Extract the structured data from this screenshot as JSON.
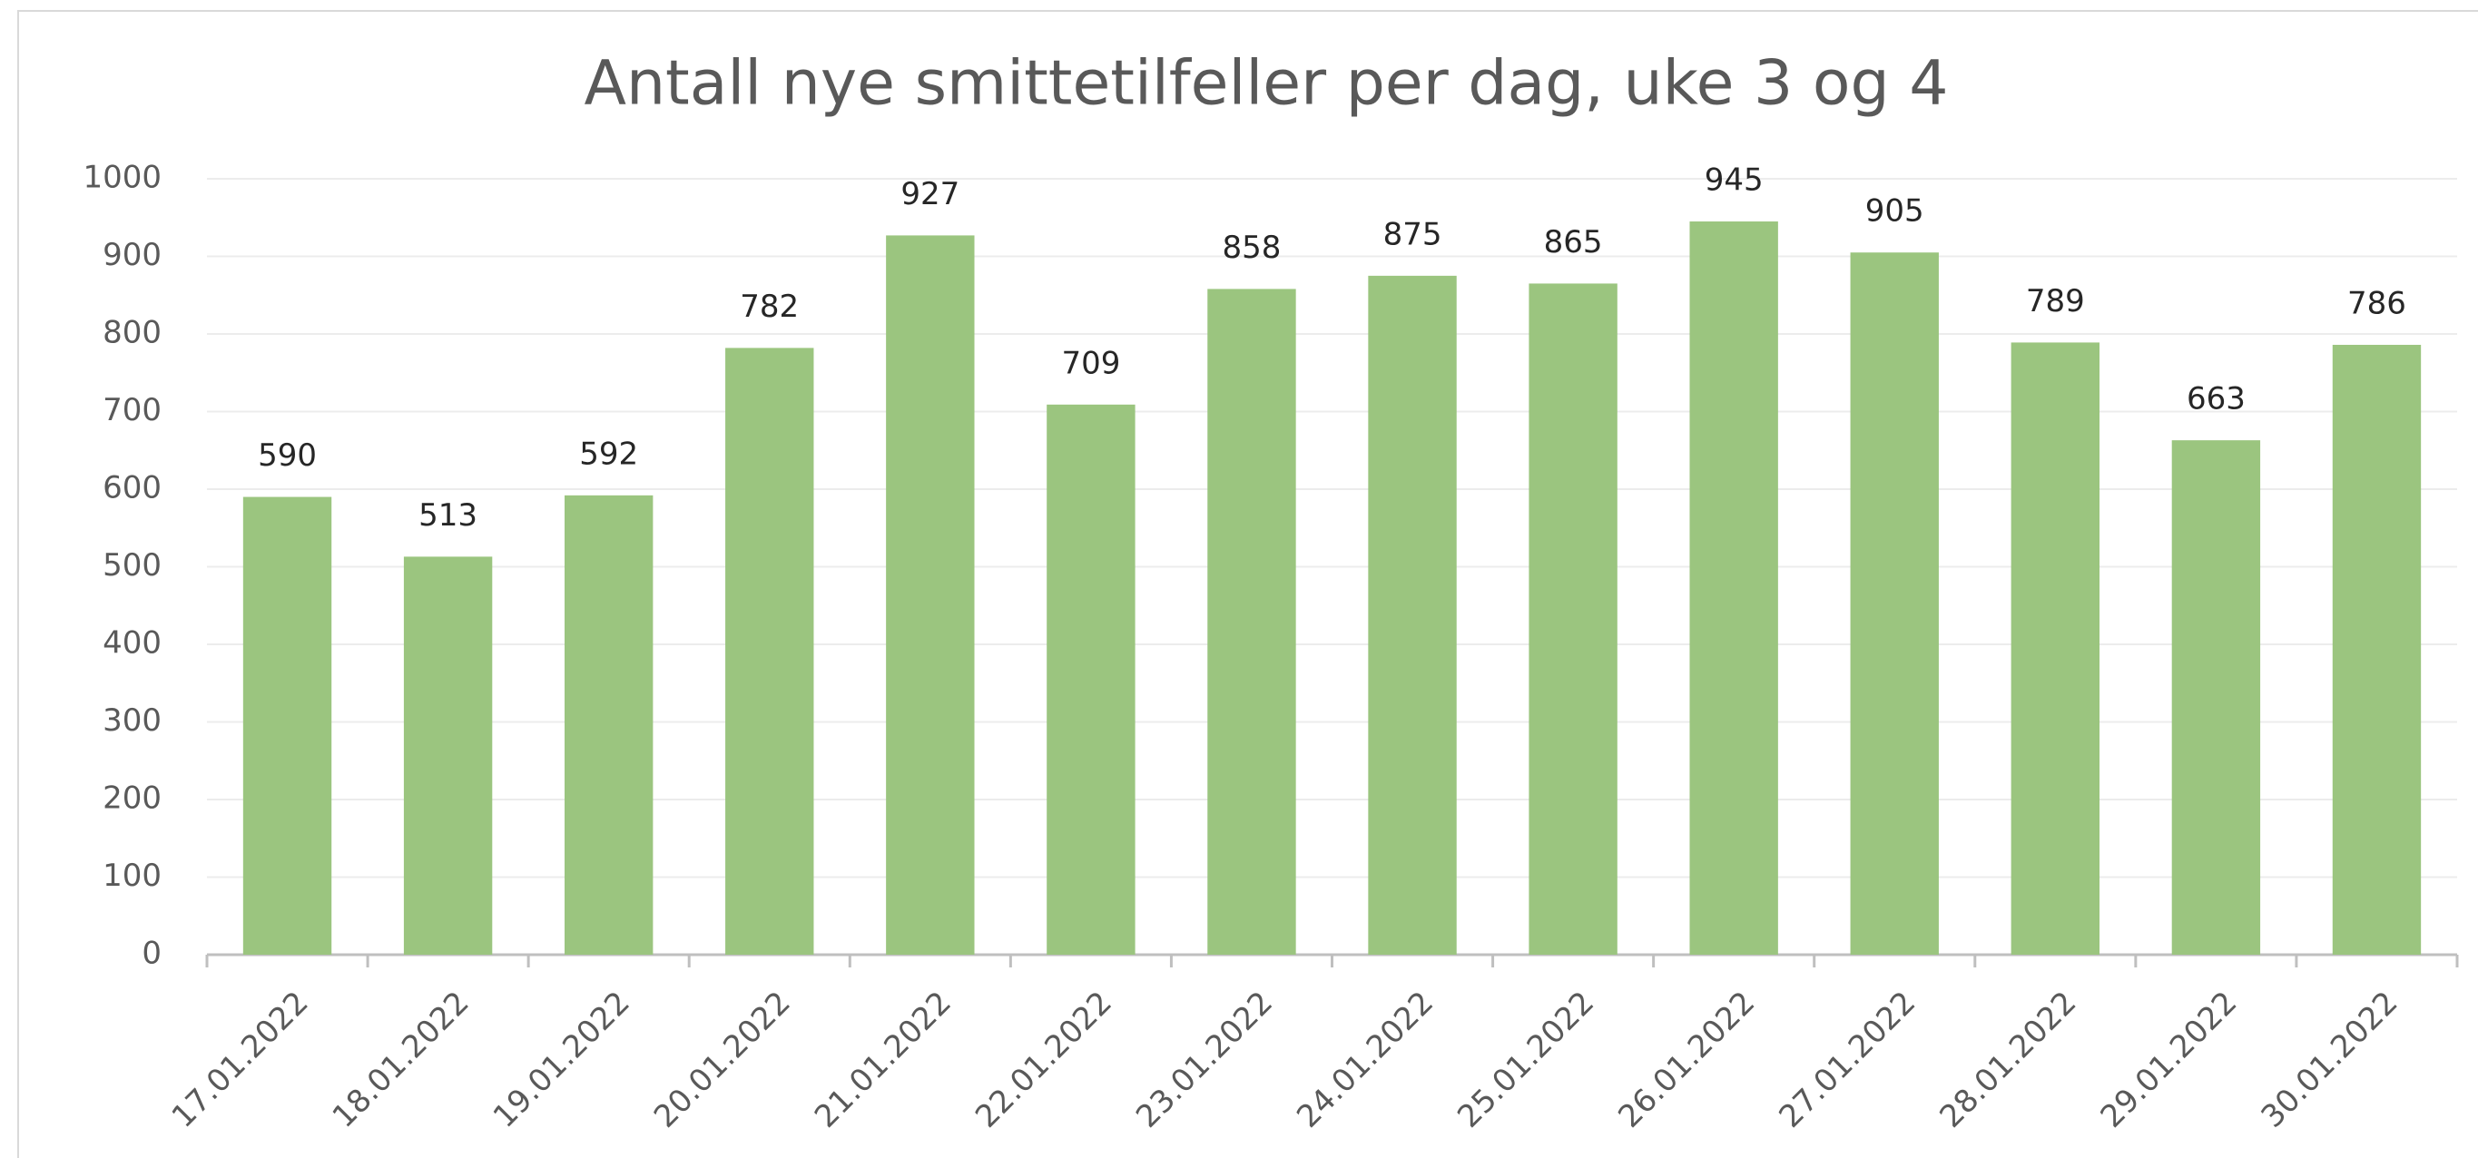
{
  "chart_data": {
    "type": "bar",
    "title": "Antall nye smittetilfeller per dag, uke 3 og 4",
    "categories": [
      "17.01.2022",
      "18.01.2022",
      "19.01.2022",
      "20.01.2022",
      "21.01.2022",
      "22.01.2022",
      "23.01.2022",
      "24.01.2022",
      "25.01.2022",
      "26.01.2022",
      "27.01.2022",
      "28.01.2022",
      "29.01.2022",
      "30.01.2022"
    ],
    "values": [
      590,
      513,
      592,
      782,
      927,
      709,
      858,
      875,
      865,
      945,
      905,
      789,
      663,
      786
    ],
    "color": "#9bc57f",
    "ylim": [
      0,
      1000
    ],
    "yticks": [
      0,
      100,
      200,
      300,
      400,
      500,
      600,
      700,
      800,
      900,
      1000
    ],
    "grid": true
  }
}
